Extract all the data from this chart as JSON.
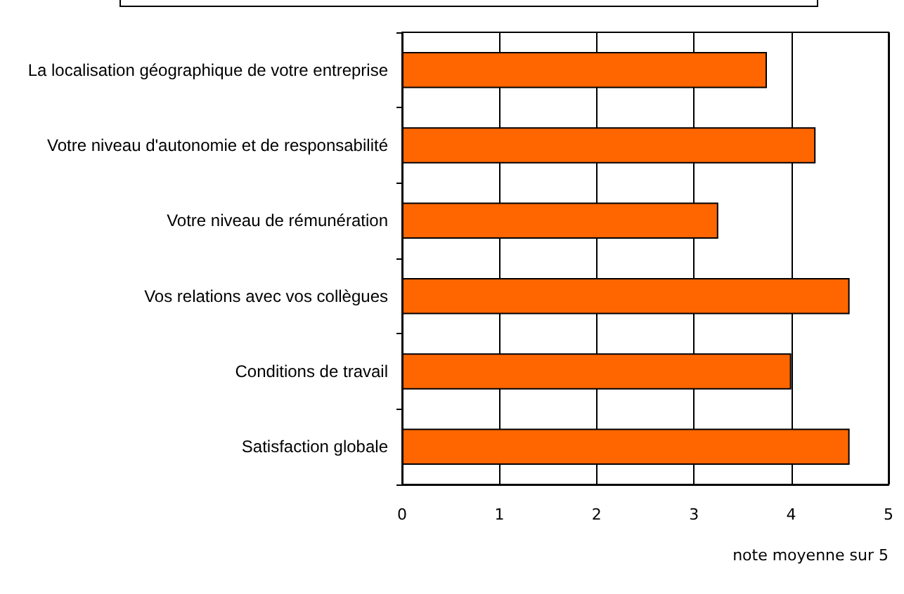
{
  "chart_data": {
    "type": "bar",
    "orientation": "horizontal",
    "xlabel": "note moyenne sur 5",
    "categories": [
      "La localisation géographique de votre entreprise",
      "Votre niveau d'autonomie et de responsabilité",
      "Votre niveau de rémunération",
      "Vos relations avec vos collègues",
      "Conditions de travail",
      "Satisfaction globale"
    ],
    "values": [
      3.75,
      4.25,
      3.25,
      4.6,
      4.0,
      4.6
    ],
    "color": "#ff6600",
    "xlim": [
      0,
      5
    ],
    "xticks": [
      0,
      1,
      2,
      3,
      4,
      5
    ],
    "grid": "x"
  }
}
